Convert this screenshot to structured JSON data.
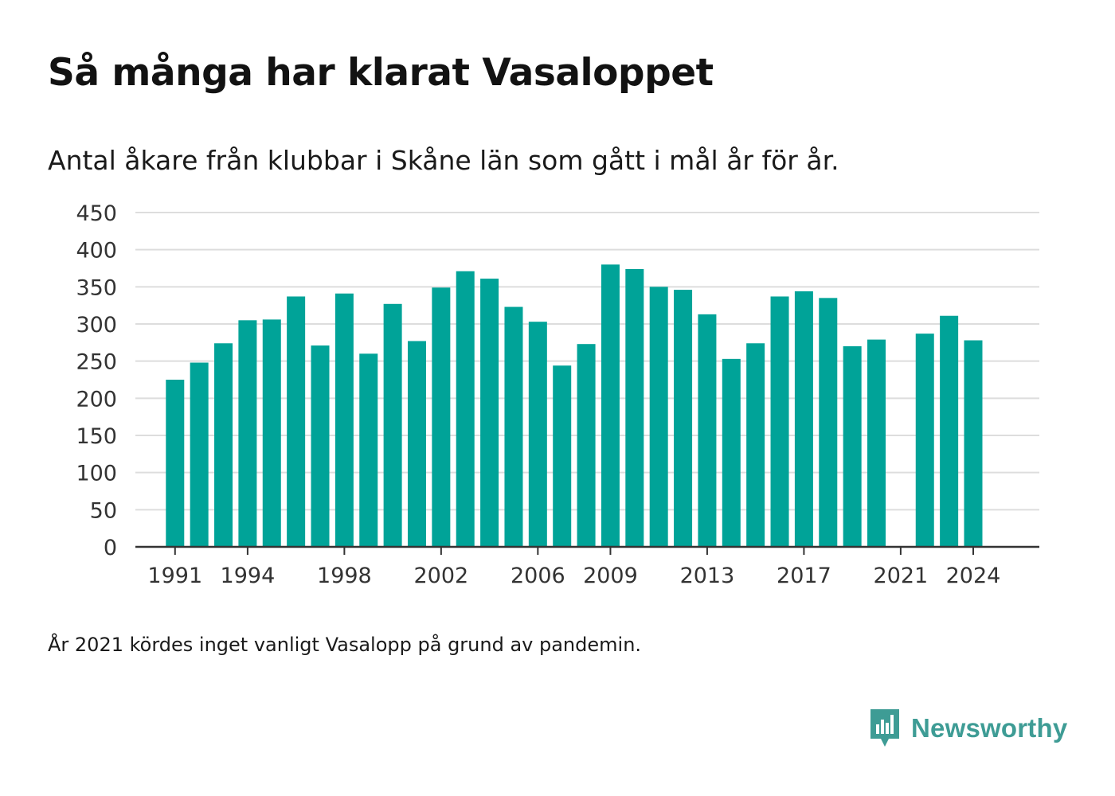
{
  "title": "Så många har klarat Vasaloppet",
  "subtitle": "Antal åkare från klubbar i Skåne län som gått i mål år för år.",
  "footnote": "År 2021 kördes inget vanligt Vasalopp på grund av pandemin.",
  "brand": {
    "name": "Newsworthy",
    "icon": "newsworthy-logo-icon",
    "color": "#3e9c95"
  },
  "colors": {
    "bar": "#00a398",
    "grid": "#dddddd",
    "axis": "#333333",
    "tick_text": "#333333"
  },
  "chart_data": {
    "type": "bar",
    "x": [
      1991,
      1992,
      1993,
      1994,
      1995,
      1996,
      1997,
      1998,
      1999,
      2000,
      2001,
      2002,
      2003,
      2004,
      2005,
      2006,
      2007,
      2008,
      2009,
      2010,
      2011,
      2012,
      2013,
      2014,
      2015,
      2016,
      2017,
      2018,
      2019,
      2020,
      2021,
      2022,
      2023,
      2024
    ],
    "values": [
      225,
      248,
      274,
      305,
      306,
      337,
      271,
      341,
      260,
      327,
      277,
      349,
      371,
      361,
      323,
      303,
      244,
      273,
      380,
      374,
      350,
      346,
      313,
      253,
      274,
      337,
      344,
      335,
      270,
      279,
      null,
      287,
      311,
      278
    ],
    "x_ticks": [
      1991,
      1994,
      1998,
      2002,
      2006,
      2009,
      2013,
      2017,
      2021,
      2024
    ],
    "y_ticks": [
      0,
      50,
      100,
      150,
      200,
      250,
      300,
      350,
      400,
      450
    ],
    "ylim": [
      0,
      450
    ],
    "grid": true,
    "legend": false
  }
}
